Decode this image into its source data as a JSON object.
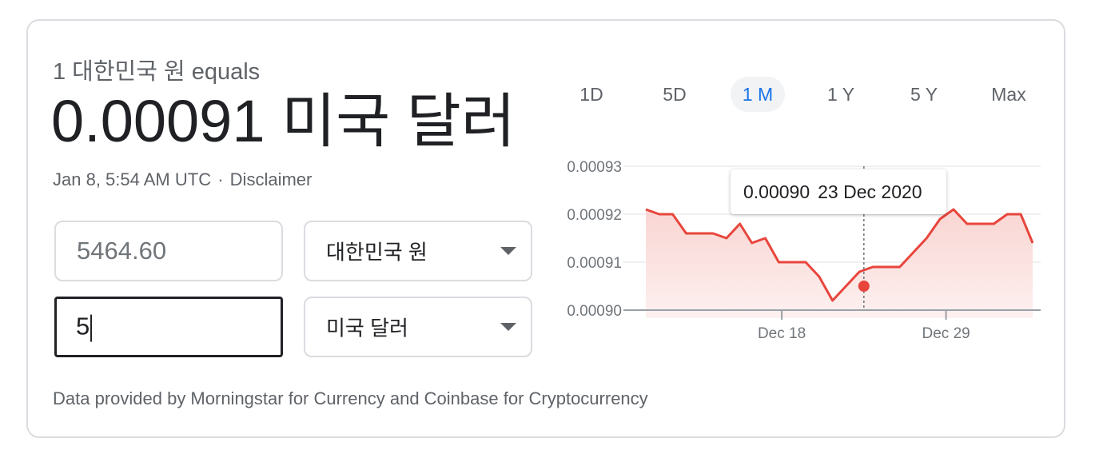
{
  "converter": {
    "equals_text": "1 대한민국 원 equals",
    "result_value": "0.00091",
    "result_currency": "미국 달러",
    "timestamp": "Jan 8, 5:54 AM UTC",
    "separator": "·",
    "disclaimer": "Disclaimer",
    "from_amount": "5464.60",
    "from_currency": "대한민국 원",
    "to_amount": "5",
    "to_currency": "미국 달러",
    "dropdown_icon": "chevron-down-icon",
    "footer": "Data provided by Morningstar for Currency and Coinbase for Cryptocurrency"
  },
  "ranges": [
    {
      "label": "1D",
      "active": false
    },
    {
      "label": "5D",
      "active": false
    },
    {
      "label": "1 M",
      "active": true
    },
    {
      "label": "1 Y",
      "active": false
    },
    {
      "label": "5 Y",
      "active": false
    },
    {
      "label": "Max",
      "active": false
    }
  ],
  "colors": {
    "line": "#e8453c",
    "area": "#fce8e6",
    "accent": "#1a73e8"
  },
  "tooltip": {
    "value": "0.00090",
    "date": "23 Dec 2020"
  },
  "chart_data": {
    "type": "area",
    "title": "",
    "xlabel": "",
    "ylabel": "",
    "ylim": [
      0.0009,
      0.00093
    ],
    "yticks": [
      "0.00093",
      "0.00092",
      "0.00091",
      "0.00090"
    ],
    "xticks": [
      {
        "label": "Dec 18",
        "day": 18
      },
      {
        "label": "Dec 29",
        "day": 29
      }
    ],
    "grid": true,
    "highlight": {
      "day": 23.5,
      "value": 0.000905
    },
    "series": [
      {
        "x": [
          8.9,
          9.8,
          10.7,
          11.6,
          12.5,
          13.4,
          14.3,
          15.2,
          16.0,
          16.9,
          17.8,
          18.7,
          19.6,
          20.5,
          21.4,
          22.3,
          23.2,
          24.1,
          25.0,
          25.9,
          26.8,
          27.7,
          28.6,
          29.5,
          30.4,
          31.3,
          32.2,
          33.1,
          34.0,
          34.8
        ],
        "values": [
          0.000921,
          0.00092,
          0.00092,
          0.000916,
          0.000916,
          0.000916,
          0.000915,
          0.000918,
          0.000914,
          0.000915,
          0.00091,
          0.00091,
          0.00091,
          0.000907,
          0.000902,
          0.000905,
          0.000908,
          0.000909,
          0.000909,
          0.000909,
          0.000912,
          0.000915,
          0.000919,
          0.000921,
          0.000918,
          0.000918,
          0.000918,
          0.00092,
          0.00092,
          0.000914
        ]
      }
    ]
  }
}
